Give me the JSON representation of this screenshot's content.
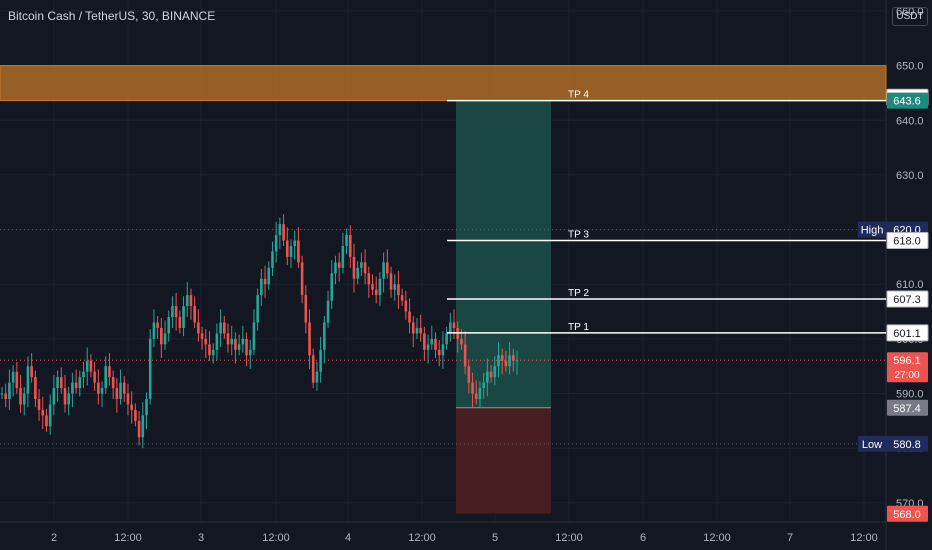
{
  "header": {
    "title": "Bitcoin Cash / TetherUS, 30, BINANCE",
    "currency": "USDT"
  },
  "colors": {
    "bg": "#131722",
    "up": "#26a69a",
    "down": "#ef5350",
    "grid": "#1e222d",
    "resistance_zone": "#c77b28",
    "profit_zone": "#1a4a43",
    "loss_zone": "#4a1f22",
    "tp_line": "#ffffff",
    "last_price_line": "#ef5350",
    "high_low_label": "#1f2b5a"
  },
  "chart_data": {
    "type": "candlestick",
    "symbol": "Bitcoin Cash / TetherUS",
    "interval": "30",
    "exchange": "BINANCE",
    "y_axis": {
      "ticks": [
        570.0,
        580.0,
        590.0,
        600.0,
        610.0,
        620.0,
        630.0,
        640.0,
        650.0,
        660.0
      ],
      "range": [
        566.5,
        662
      ],
      "position": "right"
    },
    "x_axis": {
      "ticks": [
        "2",
        "12:00",
        "3",
        "12:00",
        "4",
        "12:00",
        "5",
        "12:00",
        "6",
        "12:00",
        "7",
        "12:00"
      ]
    },
    "series_close": [
      590,
      589,
      592,
      594,
      591,
      588,
      590,
      595,
      593,
      589,
      587,
      586,
      584,
      588,
      591,
      593,
      591,
      588,
      590,
      592,
      591,
      593,
      594,
      596,
      594,
      592,
      590,
      591,
      595,
      593,
      591,
      589,
      592,
      590,
      588,
      587,
      585,
      582,
      586,
      589,
      600,
      603,
      602,
      599,
      601,
      604,
      606,
      604,
      602,
      606,
      608,
      606,
      603,
      601,
      600,
      599,
      597,
      598,
      601,
      603,
      601,
      599,
      600,
      598,
      599,
      600,
      597,
      598,
      603,
      608,
      611,
      610,
      613,
      616,
      619,
      621,
      618,
      615,
      617,
      618,
      614,
      608,
      603,
      597,
      592,
      594,
      598,
      603,
      607,
      612,
      614,
      613,
      617,
      619,
      615,
      611,
      613,
      614,
      612,
      610,
      609,
      608,
      611,
      614,
      612,
      609,
      610,
      608,
      607,
      605,
      603,
      601,
      602,
      601,
      598,
      599,
      600,
      598,
      597,
      599,
      601,
      603,
      602,
      600,
      599,
      595,
      592,
      590,
      589,
      591,
      592,
      594,
      593,
      595,
      597,
      596,
      595,
      597,
      596,
      596.1
    ],
    "price_lines": [
      {
        "label": "TP 4",
        "price": 643.6
      },
      {
        "label": "TP 3",
        "price": 618.0
      },
      {
        "label": "TP 2",
        "price": 607.3
      },
      {
        "label": "TP 1",
        "price": 601.1
      }
    ],
    "zones": {
      "resistance": {
        "from": 643.6,
        "to": 650.0
      },
      "profit": {
        "from": 587.4,
        "to": 643.6
      },
      "loss": {
        "from": 568.0,
        "to": 587.4
      }
    },
    "axis_labels": [
      {
        "price": 644.2,
        "text": "644.2",
        "style": "white"
      },
      {
        "price": 643.6,
        "text": "643.6",
        "style": "teal"
      },
      {
        "price": 620.0,
        "text": "620.0",
        "tag": "High",
        "style": "navy"
      },
      {
        "price": 618.0,
        "text": "618.0",
        "style": "white"
      },
      {
        "price": 607.3,
        "text": "607.3",
        "style": "white"
      },
      {
        "price": 601.1,
        "text": "601.1",
        "style": "white"
      },
      {
        "price": 596.1,
        "text": "596.1",
        "sub": "27:00",
        "style": "red"
      },
      {
        "price": 587.4,
        "text": "587.4",
        "style": "gray"
      },
      {
        "price": 580.8,
        "text": "580.8",
        "tag": "Low",
        "style": "navy"
      },
      {
        "price": 568.0,
        "text": "568.0",
        "style": "red"
      }
    ],
    "high": 620.0,
    "low": 580.8,
    "last_price": 596.1,
    "countdown": "27:00"
  }
}
